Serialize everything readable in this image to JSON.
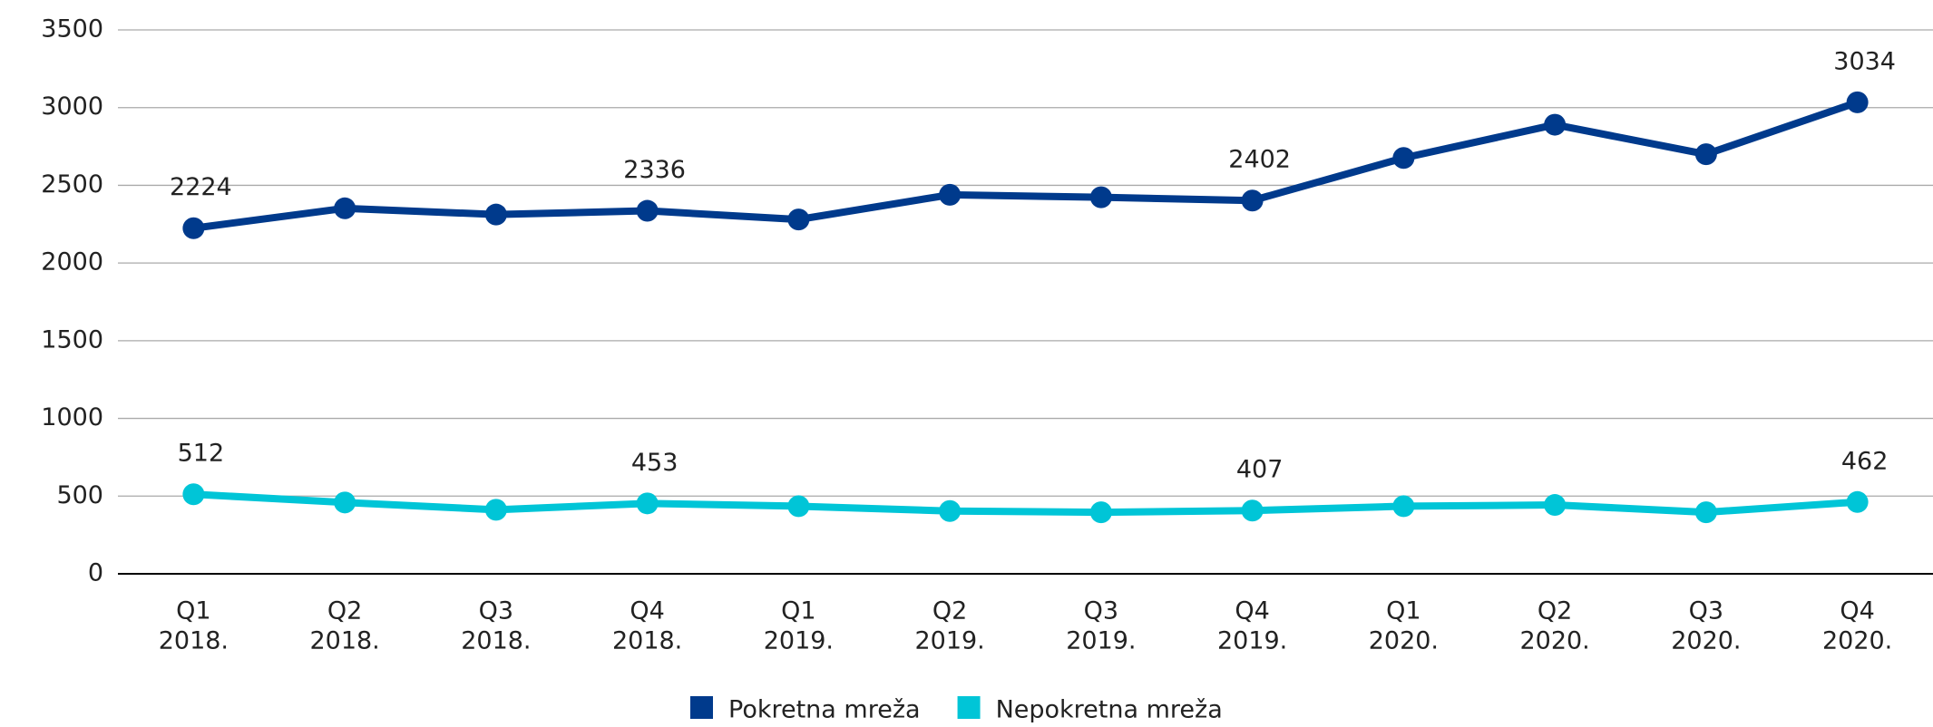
{
  "chart_data": {
    "type": "line",
    "categories": [
      [
        "Q1",
        "2018."
      ],
      [
        "Q2",
        "2018."
      ],
      [
        "Q3",
        "2018."
      ],
      [
        "Q4",
        "2018."
      ],
      [
        "Q1",
        "2019."
      ],
      [
        "Q2",
        "2019."
      ],
      [
        "Q3",
        "2019."
      ],
      [
        "Q4",
        "2019."
      ],
      [
        "Q1",
        "2020."
      ],
      [
        "Q2",
        "2020."
      ],
      [
        "Q3",
        "2020."
      ],
      [
        "Q4",
        "2020."
      ]
    ],
    "series": [
      {
        "name": "Pokretna mreža",
        "color": "#003a8c",
        "values": [
          2224,
          2352,
          2312,
          2336,
          2280,
          2439,
          2423,
          2402,
          2676,
          2890,
          2700,
          3034
        ],
        "value_labels": [
          "2224",
          null,
          null,
          "2336",
          null,
          null,
          null,
          "2402",
          null,
          null,
          null,
          "3034"
        ]
      },
      {
        "name": "Nepokretna mreža",
        "color": "#00c5d7",
        "values": [
          512,
          459,
          412,
          453,
          435,
          404,
          396,
          407,
          435,
          443,
          396,
          462
        ],
        "value_labels": [
          "512",
          null,
          null,
          "453",
          null,
          null,
          null,
          "407",
          null,
          null,
          null,
          "462"
        ]
      }
    ],
    "ylim": [
      0,
      3500
    ],
    "yticks": [
      0,
      500,
      1000,
      1500,
      2000,
      2500,
      3000,
      3500
    ],
    "grid": true,
    "legend": "bottom"
  }
}
